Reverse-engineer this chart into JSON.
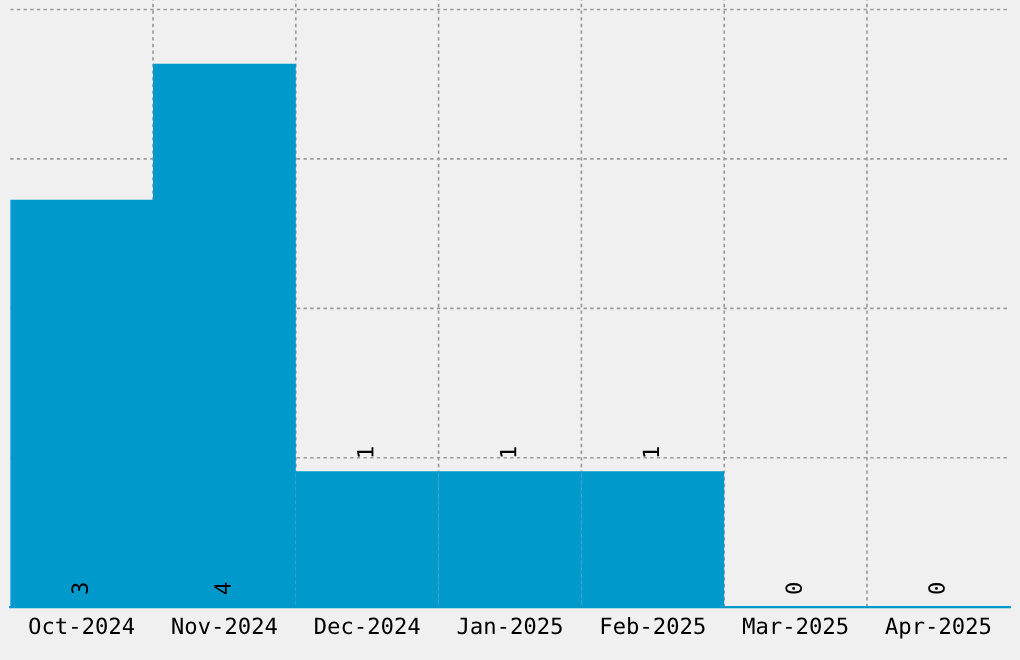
{
  "chart_data": {
    "type": "bar",
    "categories": [
      "Oct-2024",
      "Nov-2024",
      "Dec-2024",
      "Jan-2025",
      "Feb-2025",
      "Mar-2025",
      "Apr-2025"
    ],
    "values": [
      3,
      4,
      1,
      1,
      1,
      0,
      0
    ],
    "color": "#0099cc",
    "ylim": [
      0,
      4.47
    ],
    "yticks": [
      {
        "value": 1.1,
        "label": null
      },
      {
        "value": 2.2,
        "label": null
      },
      {
        "value": 3.3,
        "label": null
      },
      {
        "value": 4.4,
        "label": null
      }
    ],
    "tick_labels": "x",
    "grid": true,
    "data_labels": true
  }
}
